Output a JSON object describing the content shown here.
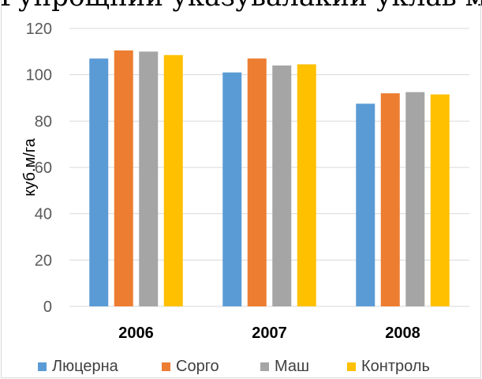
{
  "cut_text": "Гупрощний указувалакий уклав мар",
  "chart_data": {
    "type": "bar",
    "title": "",
    "xlabel": "",
    "ylabel": "куб.м/га",
    "ylim": [
      0,
      120
    ],
    "yticks": [
      0,
      20,
      40,
      60,
      80,
      100,
      120
    ],
    "grid": true,
    "legend": "bottom",
    "categories": [
      "2006",
      "2007",
      "2008"
    ],
    "series": [
      {
        "name": "Люцерна",
        "color": "#5b9bd5",
        "values": [
          107,
          101,
          87.5
        ]
      },
      {
        "name": "Сорго",
        "color": "#ed7d31",
        "values": [
          110.5,
          107,
          92
        ]
      },
      {
        "name": "Маш",
        "color": "#a5a5a5",
        "values": [
          110,
          104,
          92.5
        ]
      },
      {
        "name": "Контроль",
        "color": "#ffc000",
        "values": [
          108.5,
          104.5,
          91.5
        ]
      }
    ]
  }
}
